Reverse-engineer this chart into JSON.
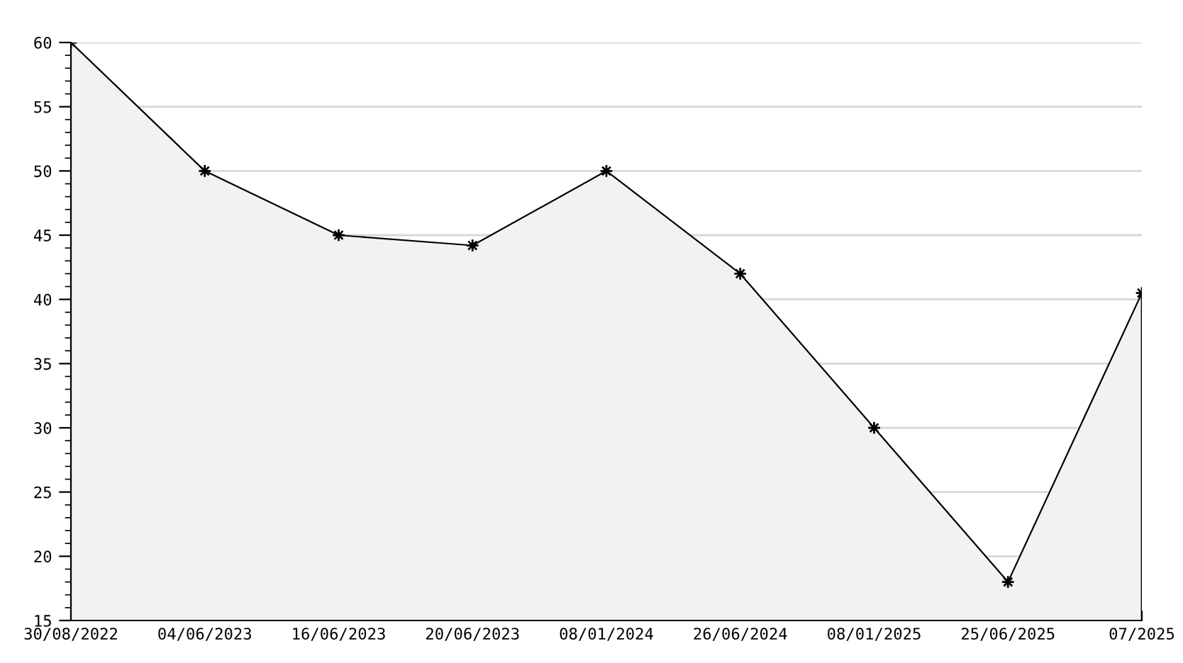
{
  "chart_data": {
    "type": "area",
    "categories": [
      "30/08/2022",
      "04/06/2023",
      "16/06/2023",
      "20/06/2023",
      "08/01/2024",
      "26/06/2024",
      "08/01/2025",
      "25/06/2025",
      "07/2025"
    ],
    "series": [
      {
        "color": "#000000",
        "values": [
          60,
          50,
          45,
          44.2,
          50,
          42,
          30,
          18,
          40.5
        ]
      }
    ],
    "ylim": [
      15,
      60
    ],
    "yticks": [
      15,
      {
        "value": 16,
        "label": null
      },
      {
        "value": 17,
        "label": null
      },
      {
        "value": 18,
        "label": null
      },
      {
        "value": 19,
        "label": null
      },
      20,
      {
        "value": 21,
        "label": null
      },
      {
        "value": 22,
        "label": null
      },
      {
        "value": 23,
        "label": null
      },
      {
        "value": 24,
        "label": null
      },
      25,
      {
        "value": 26,
        "label": null
      },
      {
        "value": 27,
        "label": null
      },
      {
        "value": 28,
        "label": null
      },
      {
        "value": 29,
        "label": null
      },
      30,
      {
        "value": 31,
        "label": null
      },
      {
        "value": 32,
        "label": null
      },
      {
        "value": 33,
        "label": null
      },
      {
        "value": 34,
        "label": null
      },
      35,
      {
        "value": 36,
        "label": null
      },
      {
        "value": 37,
        "label": null
      },
      {
        "value": 38,
        "label": null
      },
      {
        "value": 39,
        "label": null
      },
      40,
      {
        "value": 41,
        "label": null
      },
      {
        "value": 42,
        "label": null
      },
      {
        "value": 43,
        "label": null
      },
      {
        "value": 44,
        "label": null
      },
      45,
      {
        "value": 46,
        "label": null
      },
      {
        "value": 47,
        "label": null
      },
      {
        "value": 48,
        "label": null
      },
      {
        "value": 49,
        "label": null
      },
      50,
      {
        "value": 51,
        "label": null
      },
      {
        "value": 52,
        "label": null
      },
      {
        "value": 53,
        "label": null
      },
      {
        "value": 54,
        "label": null
      },
      55,
      {
        "value": 56,
        "label": null
      },
      {
        "value": 57,
        "label": null
      },
      {
        "value": 58,
        "label": null
      },
      {
        "value": 59,
        "label": null
      },
      60
    ],
    "grid": "y",
    "marker": "star",
    "line_style": "solid",
    "legend": false
  }
}
